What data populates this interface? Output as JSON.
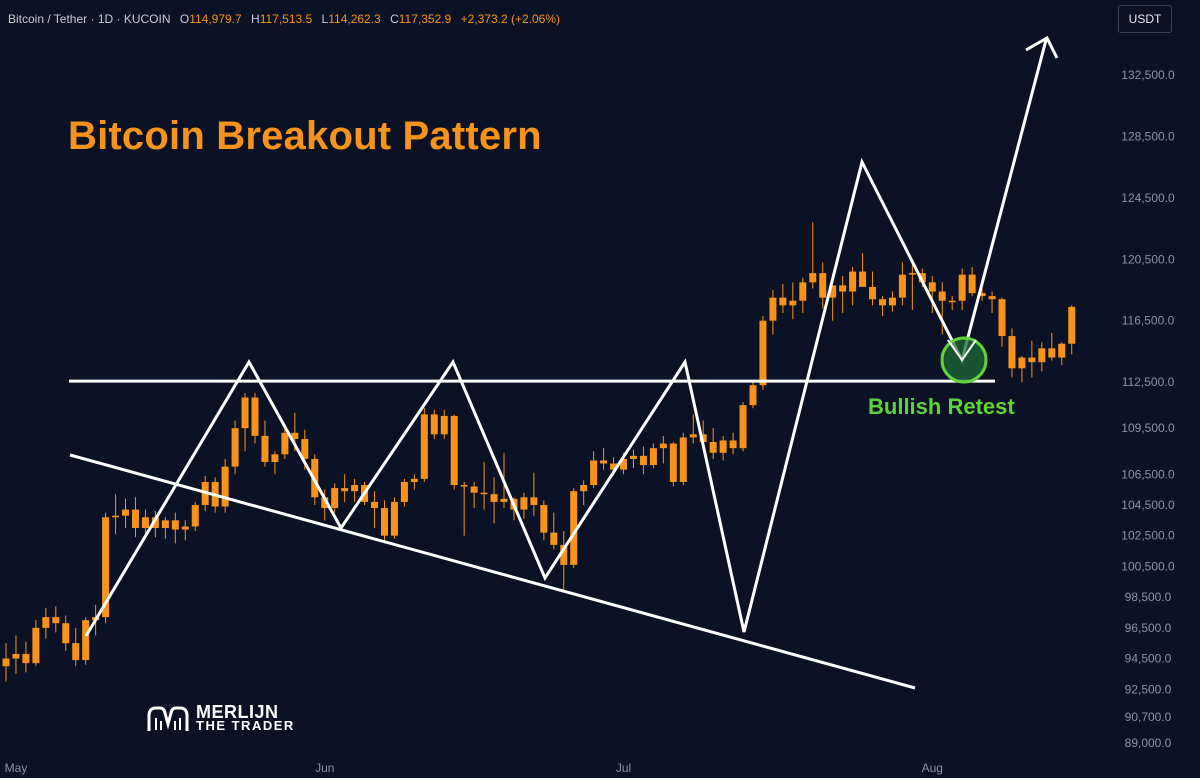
{
  "header": {
    "symbol": "Bitcoin / Tether · 1D · KUCOIN",
    "open_label": "O",
    "open": "114,979.7",
    "high_label": "H",
    "high": "117,513.5",
    "low_label": "L",
    "low": "114,262.3",
    "close_label": "C",
    "close": "117,352.9",
    "change": "+2,373.2 (+2.06%)"
  },
  "currency": "USDT",
  "title": "Bitcoin Breakout Pattern",
  "annotation": "Bullish Retest",
  "logo": {
    "line1": "MERLIJN",
    "line2": "THE TRADER"
  },
  "colors": {
    "background": "#0b1226",
    "candle": "#f7931a",
    "pattern_lines": "#ffffff",
    "retest": "#5fd33a",
    "axis_text": "#8b93a5"
  },
  "chart_data": {
    "type": "candlestick",
    "title": "Bitcoin Breakout Pattern",
    "y_axis_side": "right",
    "y_ticks": [
      "132,500.0",
      "128,500.0",
      "124,500.0",
      "120,500.0",
      "116,500.0",
      "112,500.0",
      "109,500.0",
      "106,500.0",
      "104,500.0",
      "102,500.0",
      "100,500.0",
      "98,500.0",
      "96,500.0",
      "94,500.0",
      "92,500.0",
      "90,700.0",
      "89,000.0"
    ],
    "x_ticks": [
      {
        "label": "May",
        "index": 0
      },
      {
        "label": "Jun",
        "index": 31
      },
      {
        "label": "Jul",
        "index": 61
      },
      {
        "label": "Aug",
        "index": 92
      }
    ],
    "candles": [
      [
        94000,
        95500,
        93000,
        94500
      ],
      [
        94500,
        96000,
        93500,
        94800
      ],
      [
        94800,
        95600,
        93600,
        94200
      ],
      [
        94200,
        97000,
        94000,
        96500
      ],
      [
        96500,
        97800,
        95800,
        97200
      ],
      [
        97200,
        97900,
        96200,
        96800
      ],
      [
        96800,
        97300,
        95000,
        95500
      ],
      [
        95500,
        96500,
        94000,
        94400
      ],
      [
        94400,
        97200,
        94100,
        97000
      ],
      [
        97000,
        98000,
        96000,
        97200
      ],
      [
        97200,
        104000,
        96800,
        103700
      ],
      [
        103700,
        105200,
        102600,
        103800
      ],
      [
        103800,
        104900,
        103000,
        104200
      ],
      [
        104200,
        105000,
        102400,
        103000
      ],
      [
        103000,
        104200,
        102400,
        103700
      ],
      [
        103700,
        104100,
        102400,
        103000
      ],
      [
        103000,
        103700,
        102300,
        103500
      ],
      [
        103500,
        104000,
        102000,
        102900
      ],
      [
        102900,
        103500,
        102200,
        103100
      ],
      [
        103100,
        104700,
        102800,
        104500
      ],
      [
        104500,
        106400,
        104100,
        106000
      ],
      [
        106000,
        106300,
        104000,
        104400
      ],
      [
        104400,
        107500,
        104000,
        107000
      ],
      [
        107000,
        110000,
        106500,
        109500
      ],
      [
        109500,
        111800,
        108000,
        111500
      ],
      [
        111500,
        111800,
        108500,
        109000
      ],
      [
        109000,
        110000,
        107000,
        107300
      ],
      [
        107300,
        108000,
        106500,
        107800
      ],
      [
        107800,
        109700,
        107500,
        109200
      ],
      [
        109200,
        110500,
        108000,
        108800
      ],
      [
        108800,
        109400,
        106800,
        107500
      ],
      [
        107500,
        107800,
        104500,
        105000
      ],
      [
        105000,
        105500,
        103500,
        104300
      ],
      [
        104300,
        105900,
        104000,
        105600
      ],
      [
        105600,
        106500,
        104700,
        105400
      ],
      [
        105400,
        106200,
        104700,
        105800
      ],
      [
        105800,
        106000,
        104500,
        104700
      ],
      [
        104700,
        105400,
        103000,
        104300
      ],
      [
        104300,
        104800,
        102000,
        102500
      ],
      [
        102500,
        105000,
        102300,
        104700
      ],
      [
        104700,
        106200,
        104400,
        106000
      ],
      [
        106000,
        106500,
        105500,
        106200
      ],
      [
        106200,
        110800,
        106000,
        110400
      ],
      [
        110400,
        110700,
        108800,
        109100
      ],
      [
        109100,
        110700,
        108800,
        110300
      ],
      [
        110300,
        110400,
        105500,
        105800
      ],
      [
        105800,
        106000,
        102500,
        105700
      ],
      [
        105700,
        106000,
        104300,
        105300
      ],
      [
        105300,
        107300,
        104200,
        105200
      ],
      [
        105200,
        106300,
        103300,
        104700
      ],
      [
        104700,
        107900,
        104300,
        104900
      ],
      [
        104900,
        105000,
        103500,
        104200
      ],
      [
        104200,
        105300,
        103600,
        105000
      ],
      [
        105000,
        106600,
        103800,
        104500
      ],
      [
        104500,
        104800,
        102200,
        102700
      ],
      [
        102700,
        104000,
        101600,
        101900
      ],
      [
        101900,
        102800,
        99000,
        100600
      ],
      [
        100600,
        105600,
        100400,
        105400
      ],
      [
        105400,
        106100,
        104500,
        105800
      ],
      [
        105800,
        108000,
        105600,
        107400
      ],
      [
        107400,
        108200,
        106800,
        107200
      ],
      [
        107200,
        107600,
        106400,
        106800
      ],
      [
        106800,
        107900,
        106500,
        107500
      ],
      [
        107500,
        108100,
        106900,
        107700
      ],
      [
        107700,
        108300,
        106500,
        107100
      ],
      [
        107100,
        108500,
        106900,
        108200
      ],
      [
        108200,
        109000,
        107200,
        108500
      ],
      [
        108500,
        108600,
        105700,
        106000
      ],
      [
        106000,
        109200,
        105800,
        108900
      ],
      [
        108900,
        110400,
        108500,
        109100
      ],
      [
        109100,
        110000,
        108200,
        108600
      ],
      [
        108600,
        109500,
        107500,
        107900
      ],
      [
        107900,
        109000,
        107400,
        108700
      ],
      [
        108700,
        109200,
        107800,
        108200
      ],
      [
        108200,
        111200,
        108000,
        111000
      ],
      [
        111000,
        112600,
        110800,
        112300
      ],
      [
        112300,
        116800,
        112000,
        116500
      ],
      [
        116500,
        118500,
        115600,
        118000
      ],
      [
        118000,
        118900,
        117000,
        117500
      ],
      [
        117500,
        119000,
        116600,
        117800
      ],
      [
        117800,
        119300,
        117000,
        119000
      ],
      [
        119000,
        122900,
        118600,
        119600
      ],
      [
        119600,
        120300,
        117300,
        118000
      ],
      [
        118000,
        118800,
        116500,
        118800
      ],
      [
        118800,
        119400,
        117000,
        118400
      ],
      [
        118400,
        120000,
        117500,
        119700
      ],
      [
        119700,
        120900,
        118900,
        118700
      ],
      [
        118700,
        119700,
        117500,
        117900
      ],
      [
        117900,
        118100,
        116800,
        117500
      ],
      [
        117500,
        118400,
        117100,
        118000
      ],
      [
        118000,
        120300,
        117500,
        119500
      ],
      [
        119500,
        120500,
        117200,
        119600
      ],
      [
        119600,
        119900,
        118700,
        119000
      ],
      [
        119000,
        119400,
        117000,
        118400
      ],
      [
        118400,
        119000,
        115600,
        117800
      ],
      [
        117800,
        118100,
        117200,
        117800
      ],
      [
        117800,
        119900,
        117200,
        119500
      ],
      [
        119500,
        120000,
        118100,
        118300
      ],
      [
        118300,
        118600,
        117800,
        118100
      ],
      [
        118100,
        118400,
        117000,
        117900
      ],
      [
        117900,
        118000,
        114800,
        115500
      ],
      [
        115500,
        116000,
        112800,
        113400
      ],
      [
        113400,
        114200,
        112500,
        114100
      ],
      [
        114100,
        115200,
        112800,
        113800
      ],
      [
        113800,
        115100,
        113200,
        114700
      ],
      [
        114700,
        115700,
        113900,
        114100
      ],
      [
        114100,
        115100,
        113600,
        115000
      ],
      [
        115000,
        117500,
        114300,
        117400
      ]
    ],
    "pattern_lines": {
      "resistance": [
        [
          69,
          112500
        ],
        [
          995,
          112500
        ]
      ],
      "support": [
        [
          69,
          105500
        ],
        [
          915,
          92500
        ]
      ],
      "zigzag_note": "white zig-zag path connecting swing highs and lows with projected move to the upside",
      "retest_circle_price": 112500
    },
    "projection_peak": 135000,
    "projection_top_label": ""
  }
}
